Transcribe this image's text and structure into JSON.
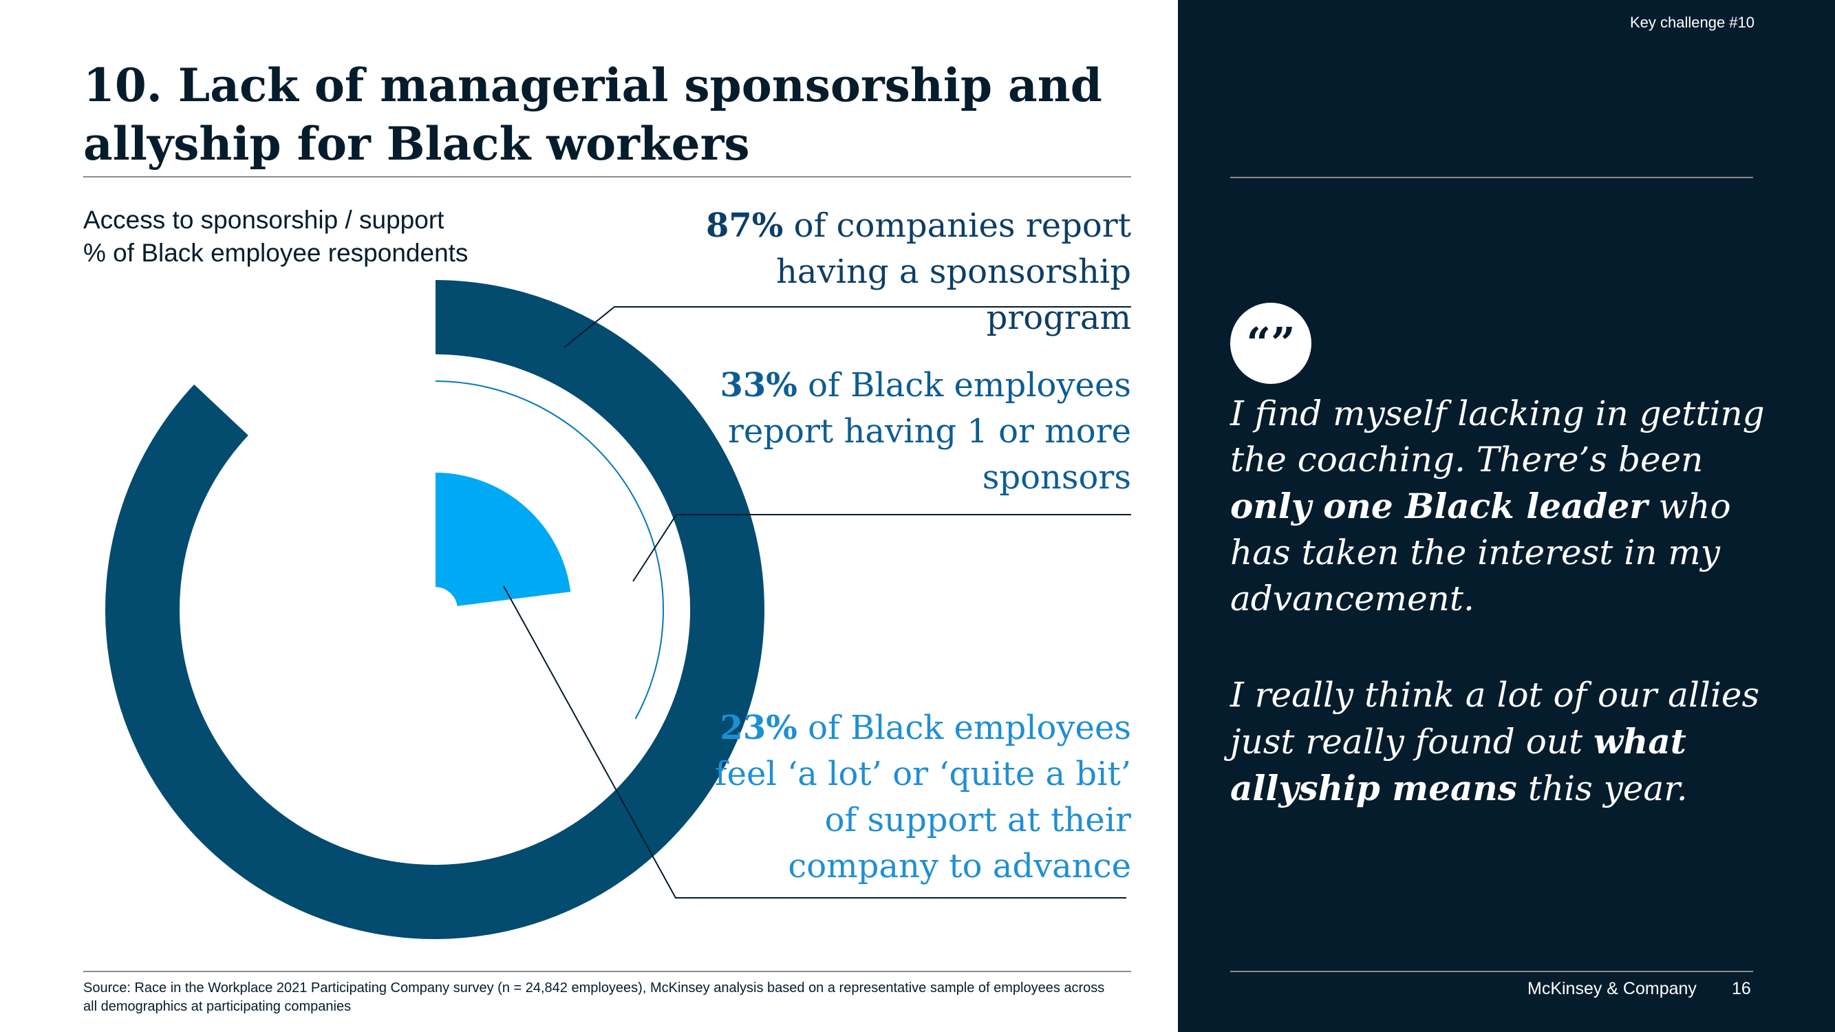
{
  "title": "10. Lack of managerial sponsorship and\nallyship for Black workers",
  "chart_data": {
    "type": "pie",
    "variant": "concentric radial bars",
    "title": "Access to sponsorship / support",
    "subtitle": "% of Black employee respondents",
    "series": [
      {
        "label": "companies reporting a sponsorship program",
        "value": 87,
        "color": "#034b6f"
      },
      {
        "label": "Black employees reporting 1 or more sponsors",
        "value": 33,
        "color": "#0679b5"
      },
      {
        "label": "Black employees feeling 'a lot' or 'quite a bit' of support",
        "value": 23,
        "color": "#00a9f4"
      }
    ],
    "ylim": [
      0,
      100
    ]
  },
  "callouts": [
    {
      "pct": "87%",
      "text": " of companies report having a sponsorship program"
    },
    {
      "pct": "33%",
      "text": " of Black employees report having 1 or more sponsors"
    },
    {
      "pct": "23%",
      "text": " of Black employees feel ‘a lot’ or ‘quite a bit’ of support at their company to advance"
    }
  ],
  "source": "Source: Race in the Workplace 2021 Participating Company survey (n = 24,842 employees), McKinsey analysis based on a representative sample of employees across all demographics at participating companies",
  "sidebar": {
    "key_challenge": "Key challenge #10",
    "quote_mark": "“”",
    "quote1": {
      "pre": "I find myself lacking in getting the coaching. There’s been ",
      "bold": "only one Black leader",
      "post": " who has taken the interest in my advancement."
    },
    "quote2": {
      "pre": "I really think a lot of our allies just really found out ",
      "bold": "what allyship means",
      "post": " this year."
    },
    "brand": "McKinsey & Company",
    "page": "16"
  }
}
